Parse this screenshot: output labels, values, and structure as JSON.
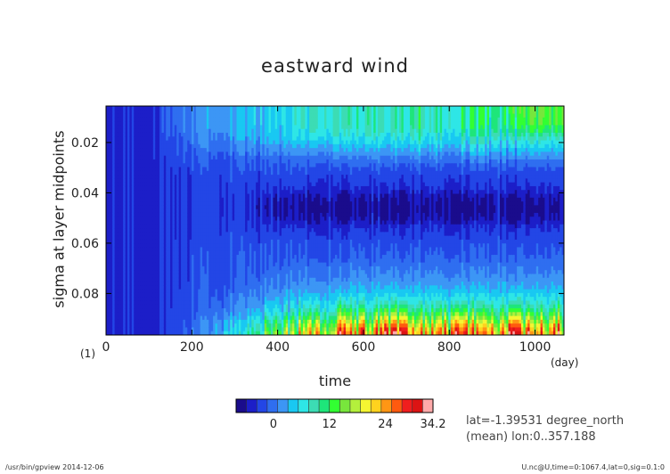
{
  "chart_data": {
    "type": "heatmap",
    "title": "eastward wind",
    "xlabel": "time",
    "ylabel": "sigma at layer midpoints",
    "x_unit": "(day)",
    "y_unit": "(1)",
    "xlim": [
      0,
      1067.4
    ],
    "ylim": [
      0.0965,
      0.0055
    ],
    "x_ticks": [
      0,
      200,
      400,
      600,
      800,
      1000
    ],
    "y_ticks": [
      0.02,
      0.04,
      0.06,
      0.08
    ],
    "y_tick_labels": [
      "0.02",
      "0.04",
      "0.06",
      "0.08"
    ],
    "colorbar": {
      "min": -8,
      "max": 34.2,
      "tick_values": [
        0,
        12,
        24,
        34.2
      ],
      "tick_labels": [
        "0",
        "12",
        "24",
        "34.2"
      ],
      "colors": [
        "#1a0c8c",
        "#1c1ec8",
        "#2346e6",
        "#2f6ef0",
        "#3c96f5",
        "#19c8f2",
        "#2ee6e6",
        "#3cdcb4",
        "#1ee67a",
        "#32ff32",
        "#78e63c",
        "#b4f03c",
        "#f5f532",
        "#ffd21e",
        "#ff9614",
        "#ff5a0f",
        "#f01e1e",
        "#dc1414",
        "#ffaaaa"
      ]
    },
    "field_summary": [
      {
        "region": "t 0–150, all sigma",
        "wind": "about -4 to 0"
      },
      {
        "region": "sigma 0.005–0.03, t 300–1067",
        "wind": "about 6 to 12"
      },
      {
        "region": "sigma 0.04–0.05, t 400–1067",
        "wind": "about -4 to 2"
      },
      {
        "region": "sigma 0.085–0.0965, t 500–1067",
        "wind": "about 20 to 32"
      }
    ]
  },
  "info": {
    "line1": "lat=-1.39531 degree_north",
    "line2": "(mean) lon:0..357.188"
  },
  "footer": {
    "left": "/usr/bin/gpview  2014-12-06",
    "right": "U.nc@U,time=0:1067.4,lat=0,sig=0.1:0"
  }
}
